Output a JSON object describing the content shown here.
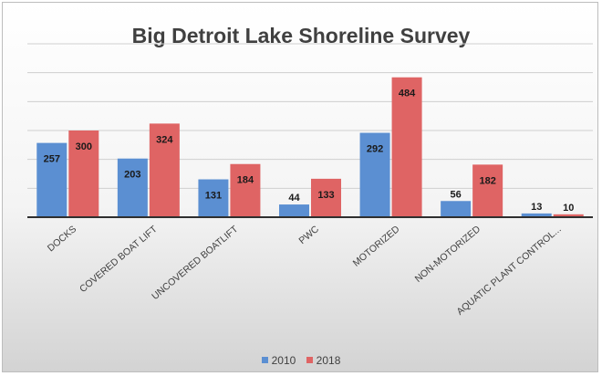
{
  "chart_data": {
    "type": "bar",
    "title": "Big Detroit Lake Shoreline Survey",
    "categories": [
      "DOCKS",
      "COVERED BOAT LIFT",
      "UNCOVERED BOATLIFT",
      "PWC",
      "MOTORIZED",
      "NON-MOTORIZED",
      "AQUATIC PLANT CONTROL..."
    ],
    "series": [
      {
        "name": "2010",
        "values": [
          257,
          203,
          131,
          44,
          292,
          56,
          13
        ],
        "color": "#5b8fd2"
      },
      {
        "name": "2018",
        "values": [
          300,
          324,
          184,
          133,
          484,
          182,
          10
        ],
        "color": "#df6464"
      }
    ],
    "ylim": [
      0,
      600
    ],
    "grid": true,
    "legend_position": "bottom",
    "data_labels": true
  }
}
